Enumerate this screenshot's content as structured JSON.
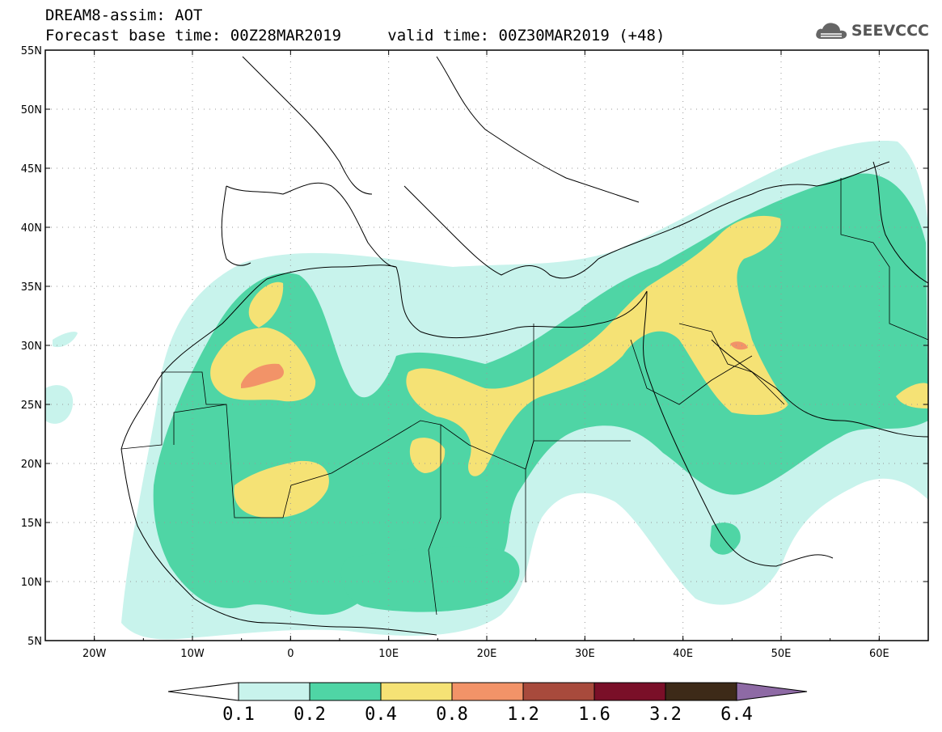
{
  "header": {
    "title": "DREAM8-assim: AOT",
    "base_time_label": "Forecast base time: 00Z28MAR2019",
    "valid_time_label": "valid time: 00Z30MAR2019 (+48)",
    "brand": "SEEVCCC"
  },
  "map": {
    "lat_labels": [
      "55N",
      "50N",
      "45N",
      "40N",
      "35N",
      "30N",
      "25N",
      "20N",
      "15N",
      "10N",
      "5N"
    ],
    "lon_labels": [
      "20W",
      "10W",
      "0",
      "10E",
      "20E",
      "30E",
      "40E",
      "50E",
      "60E"
    ]
  },
  "colorbar": {
    "colors": [
      "#c8f3ec",
      "#4fd5a5",
      "#f5e275",
      "#f29368",
      "#a84a3c",
      "#7a0f28",
      "#3d2a18"
    ],
    "under_color": "#ffffff",
    "over_color": "#8e6aa5",
    "labels": [
      "0.1",
      "0.2",
      "0.4",
      "0.8",
      "1.2",
      "1.6",
      "3.2",
      "6.4"
    ]
  },
  "icons": {
    "brand_logo": "cloud-icon"
  }
}
